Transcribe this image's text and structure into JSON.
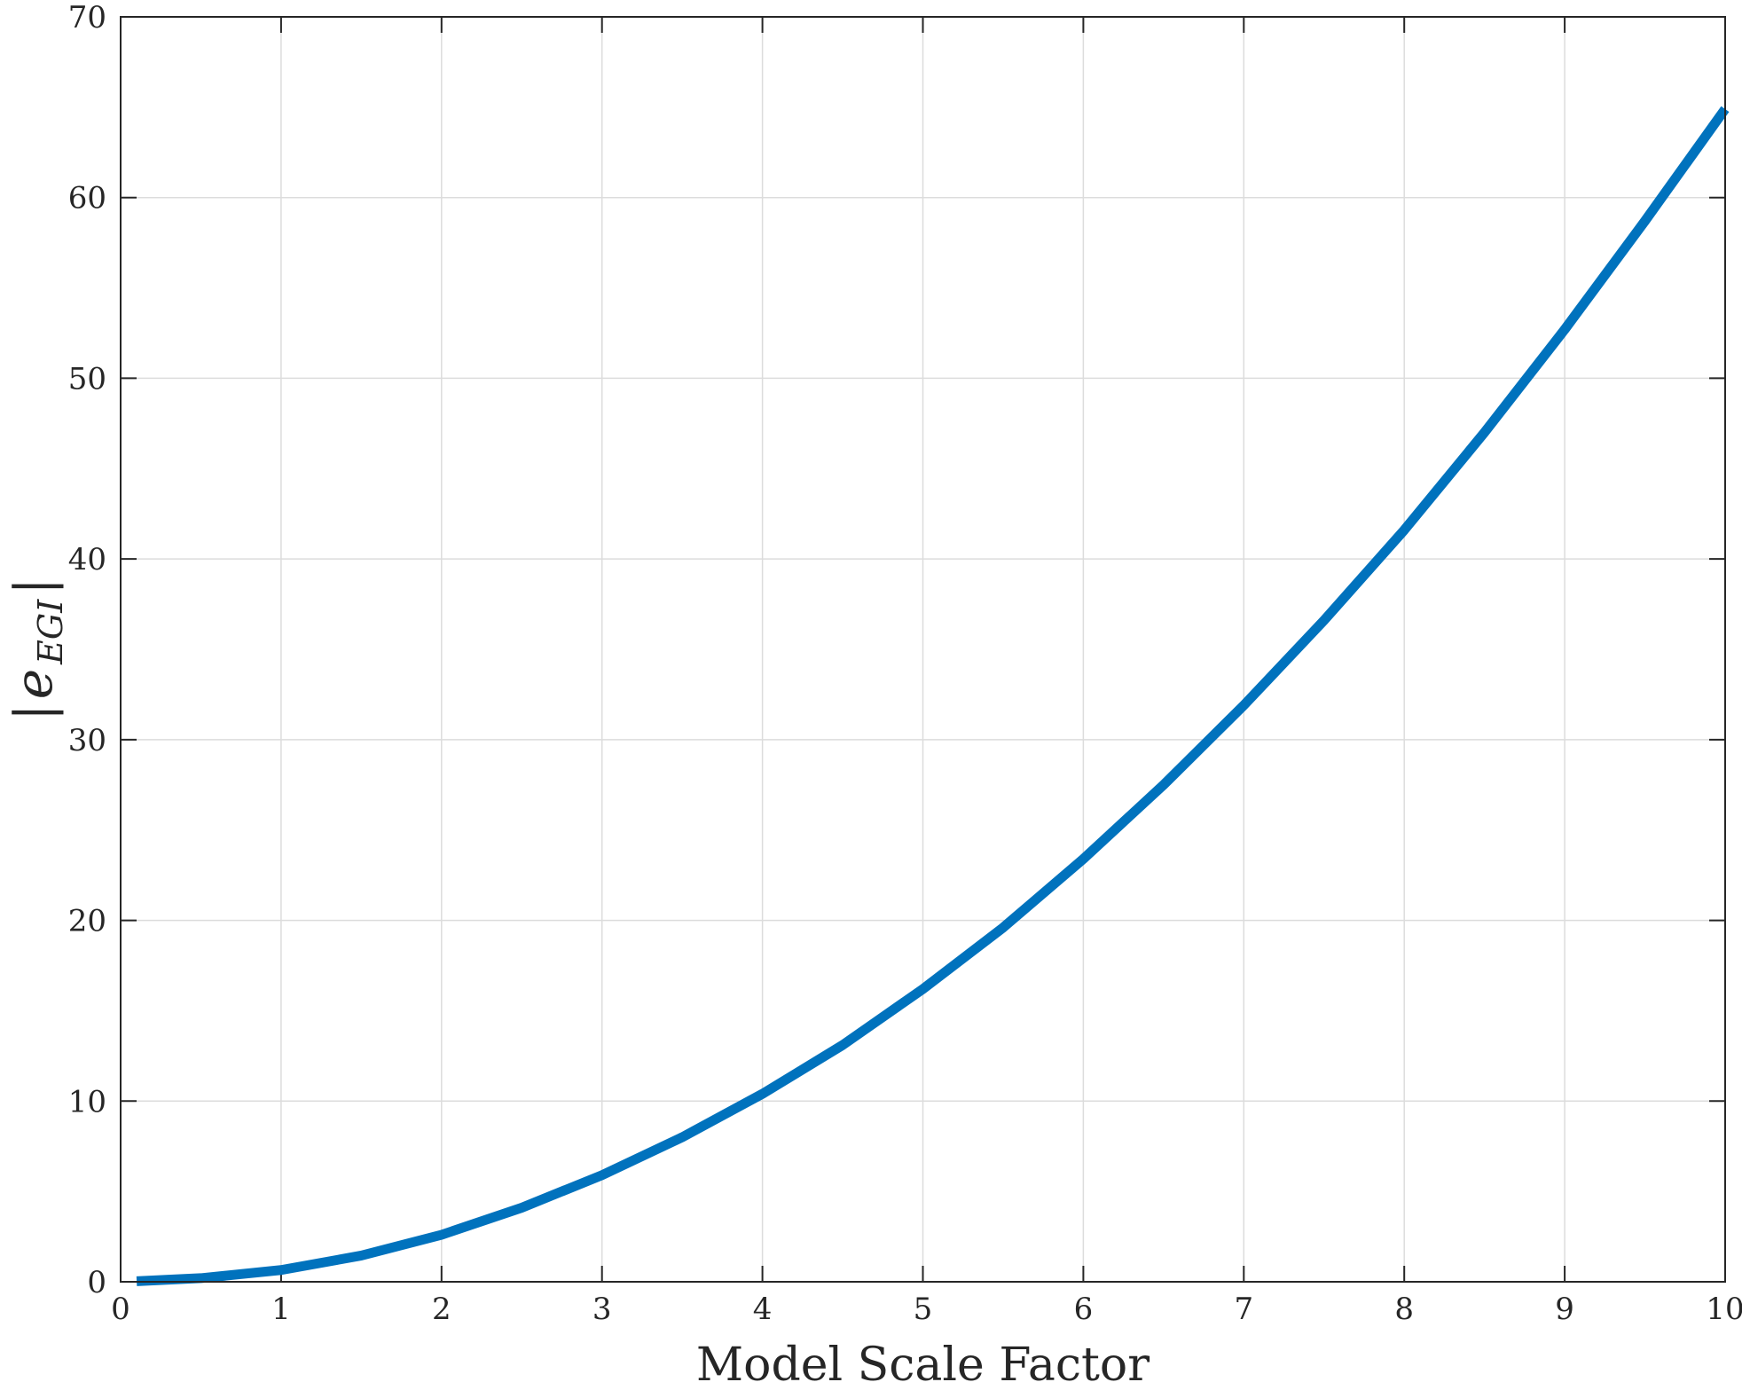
{
  "chart_data": {
    "type": "line",
    "title": "",
    "xlabel": "Model Scale Factor",
    "ylabel": "|e_{EGI}|",
    "ylabel_parts": {
      "bar_left": "|",
      "base": "e",
      "subscript": "EGI",
      "bar_right": "|"
    },
    "xlim": [
      0,
      10
    ],
    "ylim": [
      0,
      70
    ],
    "xticks": [
      0,
      1,
      2,
      3,
      4,
      5,
      6,
      7,
      8,
      9,
      10
    ],
    "yticks": [
      0,
      10,
      20,
      30,
      40,
      50,
      60,
      70
    ],
    "grid": true,
    "colors": {
      "series": "#0072BD",
      "axis": "#262626",
      "grid": "#dcdcdc"
    },
    "series": [
      {
        "x": [
          0.1,
          0.5,
          1,
          1.5,
          2,
          2.5,
          3,
          3.5,
          4,
          4.5,
          5,
          5.5,
          6,
          6.5,
          7,
          7.5,
          8,
          8.5,
          9,
          9.5,
          10
        ],
        "values": [
          0.03,
          0.2,
          0.65,
          1.45,
          2.6,
          4.1,
          5.9,
          8.0,
          10.4,
          13.1,
          16.2,
          19.6,
          23.4,
          27.5,
          31.9,
          36.6,
          41.6,
          47.0,
          52.7,
          58.7,
          64.9
        ]
      }
    ]
  }
}
